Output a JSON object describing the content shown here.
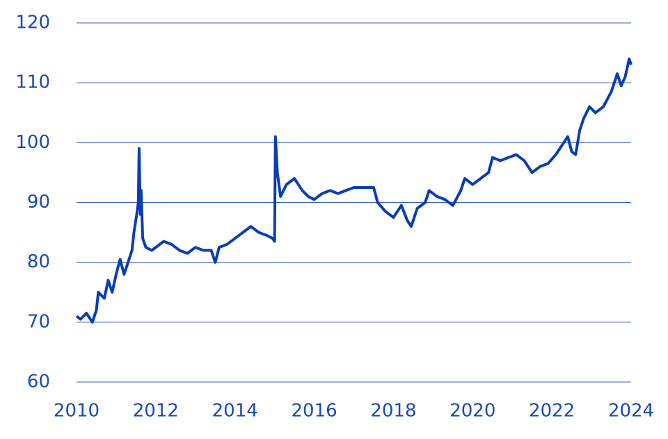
{
  "chart_data": {
    "type": "line",
    "x": [
      2010.0,
      2010.1,
      2010.25,
      2010.4,
      2010.5,
      2010.55,
      2010.7,
      2010.8,
      2010.9,
      2011.0,
      2011.1,
      2011.2,
      2011.3,
      2011.4,
      2011.45,
      2011.52,
      2011.56,
      2011.58,
      2011.61,
      2011.63,
      2011.67,
      2011.75,
      2011.9,
      2012.0,
      2012.2,
      2012.4,
      2012.6,
      2012.8,
      2013.0,
      2013.2,
      2013.4,
      2013.5,
      2013.6,
      2013.8,
      2014.0,
      2014.2,
      2014.4,
      2014.6,
      2014.8,
      2014.95,
      2015.0,
      2015.02,
      2015.07,
      2015.15,
      2015.3,
      2015.5,
      2015.7,
      2015.85,
      2016.0,
      2016.2,
      2016.4,
      2016.6,
      2016.8,
      2017.0,
      2017.3,
      2017.5,
      2017.6,
      2017.8,
      2018.0,
      2018.2,
      2018.35,
      2018.45,
      2018.6,
      2018.8,
      2018.9,
      2019.1,
      2019.3,
      2019.5,
      2019.7,
      2019.8,
      2020.0,
      2020.2,
      2020.4,
      2020.5,
      2020.7,
      2020.9,
      2021.1,
      2021.3,
      2021.5,
      2021.7,
      2021.9,
      2022.1,
      2022.3,
      2022.4,
      2022.5,
      2022.6,
      2022.7,
      2022.8,
      2022.95,
      2023.1,
      2023.3,
      2023.5,
      2023.65,
      2023.75,
      2023.85,
      2023.95,
      2024.0
    ],
    "series": [
      {
        "color": "#0a3db5",
        "values": [
          71,
          70.5,
          71.5,
          70,
          72,
          75,
          74,
          77,
          75,
          78,
          80.5,
          78,
          80,
          82,
          85,
          88,
          90,
          99,
          88,
          92,
          84,
          82.5,
          82,
          82.5,
          83.5,
          83,
          82,
          81.5,
          82.5,
          82,
          82,
          80,
          82.5,
          83,
          84,
          85,
          86,
          85,
          84.5,
          84,
          83.5,
          101,
          95,
          91,
          93,
          94,
          92,
          91,
          90.5,
          91.5,
          92,
          91.5,
          92,
          92.5,
          92.5,
          92.5,
          90,
          88.5,
          87.5,
          89.5,
          87,
          86,
          89,
          90,
          92,
          91,
          90.5,
          89.5,
          92,
          94,
          93,
          94,
          95,
          97.5,
          97,
          97.5,
          98,
          97,
          95,
          96,
          96.5,
          98,
          100,
          101,
          98.5,
          98,
          102,
          104,
          106,
          105,
          106,
          108.5,
          111.5,
          109.5,
          111,
          114,
          113
        ]
      }
    ],
    "xlim": [
      2010,
      2024
    ],
    "xticks": [
      2010,
      2012,
      2014,
      2016,
      2018,
      2020,
      2022,
      2024
    ],
    "ylim": [
      60,
      120
    ],
    "yticks": [
      60,
      70,
      80,
      90,
      100,
      110,
      120
    ],
    "grid": true
  }
}
